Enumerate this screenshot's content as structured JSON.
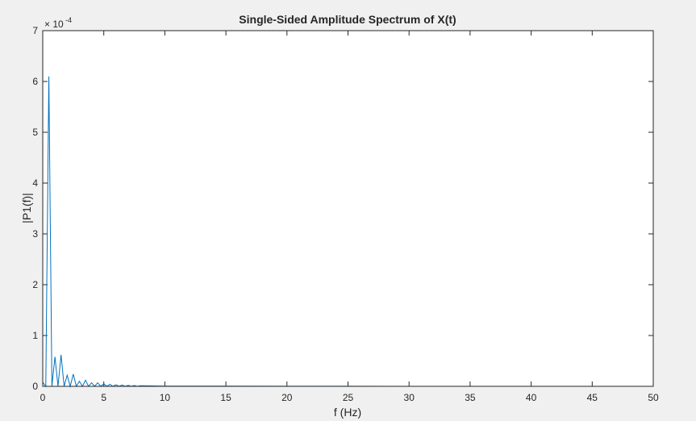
{
  "figure": {
    "background": "#f0f0f0"
  },
  "chart_data": {
    "type": "line",
    "title": "Single-Sided Amplitude Spectrum of X(t)",
    "xlabel": "f (Hz)",
    "ylabel": "|P1(f)|",
    "y_exponent_label": "× 10",
    "y_exponent_power": "-4",
    "xlim": [
      0,
      50
    ],
    "ylim": [
      0,
      7
    ],
    "xticks": [
      0,
      5,
      10,
      15,
      20,
      25,
      30,
      35,
      40,
      45,
      50
    ],
    "yticks": [
      0,
      1,
      2,
      3,
      4,
      5,
      6,
      7
    ],
    "xtick_labels": [
      "0",
      "5",
      "10",
      "15",
      "20",
      "25",
      "30",
      "35",
      "40",
      "45",
      "50"
    ],
    "ytick_labels": [
      "0",
      "1",
      "2",
      "3",
      "4",
      "5",
      "6",
      "7"
    ],
    "grid": false,
    "line_color": "#0072bd",
    "series": [
      {
        "x": [
          0,
          0.25,
          0.5,
          0.75,
          1.0,
          1.25,
          1.5,
          1.75,
          2.0,
          2.25,
          2.5,
          2.75,
          3.0,
          3.25,
          3.5,
          3.75,
          4.0,
          4.25,
          4.5,
          4.75,
          5.0,
          5.25,
          5.5,
          5.75,
          6.0,
          6.25,
          6.5,
          6.75,
          7.0,
          7.25,
          7.5,
          7.75,
          8.0,
          8.5,
          9.0,
          10,
          12,
          15,
          20,
          25,
          30,
          35,
          40,
          45,
          50
        ],
        "values": [
          0.08,
          0.0,
          6.1,
          0.0,
          0.58,
          0.0,
          0.62,
          0.0,
          0.22,
          0.0,
          0.24,
          0.0,
          0.1,
          0.0,
          0.12,
          0.0,
          0.07,
          0.0,
          0.07,
          0.0,
          0.05,
          0.0,
          0.04,
          0.0,
          0.03,
          0.0,
          0.025,
          0.0,
          0.02,
          0.0,
          0.015,
          0.0,
          0.012,
          0.01,
          0.008,
          0.005,
          0.004,
          0.003,
          0.002,
          0.002,
          0.001,
          0.001,
          0.001,
          0.001,
          0.001
        ]
      }
    ]
  }
}
